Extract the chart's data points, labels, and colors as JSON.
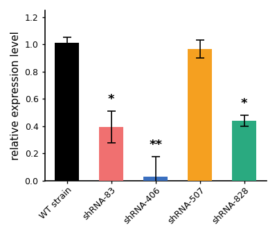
{
  "categories": [
    "WT strain",
    "shRNA-83",
    "shRNA-406",
    "shRNA-507",
    "shRNA-828"
  ],
  "values": [
    1.01,
    0.395,
    0.032,
    0.965,
    0.44
  ],
  "errors": [
    0.045,
    0.115,
    0.145,
    0.065,
    0.04
  ],
  "bar_colors": [
    "#000000",
    "#f07070",
    "#3a6fbf",
    "#f5a020",
    "#2aaa80"
  ],
  "significance": [
    "",
    "*",
    "**",
    "",
    "*"
  ],
  "ylabel": "relative expression level",
  "ylim": [
    0,
    1.25
  ],
  "yticks": [
    0.0,
    0.2,
    0.4,
    0.6,
    0.8,
    1.0,
    1.2
  ],
  "background_color": "#ffffff",
  "tick_label_fontsize": 9,
  "ylabel_fontsize": 11,
  "sig_fontsize": 13
}
